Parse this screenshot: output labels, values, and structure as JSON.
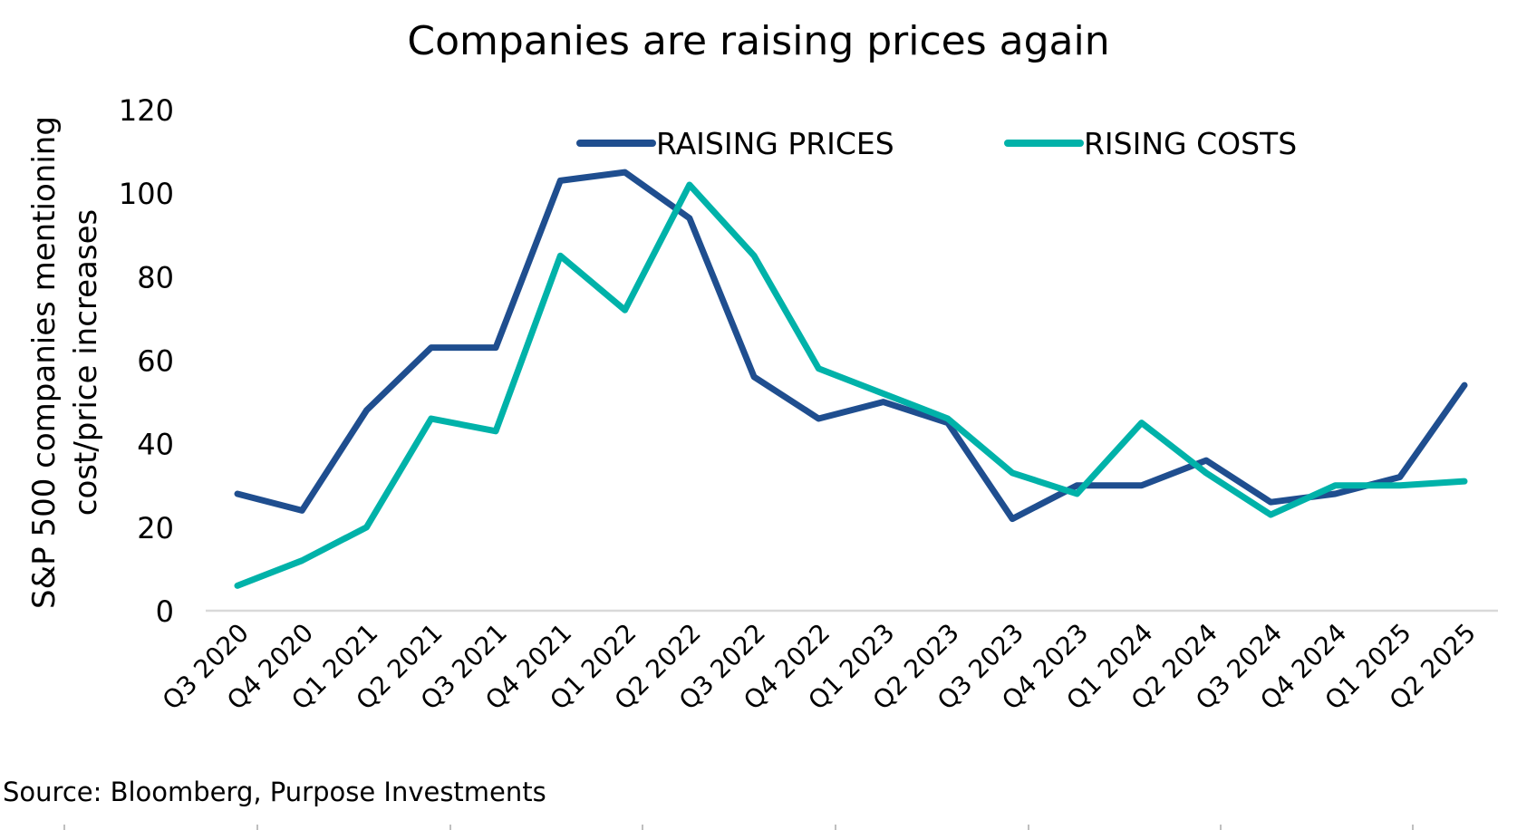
{
  "chart_data": {
    "type": "line",
    "title": "Companies are raising prices again",
    "ylabel_lines": [
      "S&P 500 companies mentioning",
      "cost/price increases"
    ],
    "xlabel": "",
    "ylim": [
      0,
      120
    ],
    "yticks": [
      0,
      20,
      40,
      60,
      80,
      100,
      120
    ],
    "grid": false,
    "legend_position": "top",
    "categories": [
      "Q3 2020",
      "Q4 2020",
      "Q1 2021",
      "Q2 2021",
      "Q3 2021",
      "Q4 2021",
      "Q1 2022",
      "Q2 2022",
      "Q3 2022",
      "Q4 2022",
      "Q1 2023",
      "Q2 2023",
      "Q3 2023",
      "Q4 2023",
      "Q1 2024",
      "Q2 2024",
      "Q3 2024",
      "Q4 2024",
      "Q1 2025",
      "Q2 2025"
    ],
    "series": [
      {
        "name": "RAISING PRICES",
        "color": "#1f4e8f",
        "values": [
          28,
          24,
          48,
          63,
          63,
          103,
          105,
          94,
          56,
          46,
          50,
          45,
          22,
          30,
          30,
          36,
          26,
          28,
          32,
          54
        ]
      },
      {
        "name": "RISING COSTS",
        "color": "#00b2a9",
        "values": [
          6,
          12,
          20,
          46,
          43,
          85,
          72,
          102,
          85,
          58,
          52,
          46,
          33,
          28,
          45,
          33,
          23,
          30,
          30,
          31
        ]
      }
    ],
    "source": "Source: Bloomberg, Purpose Investments"
  }
}
